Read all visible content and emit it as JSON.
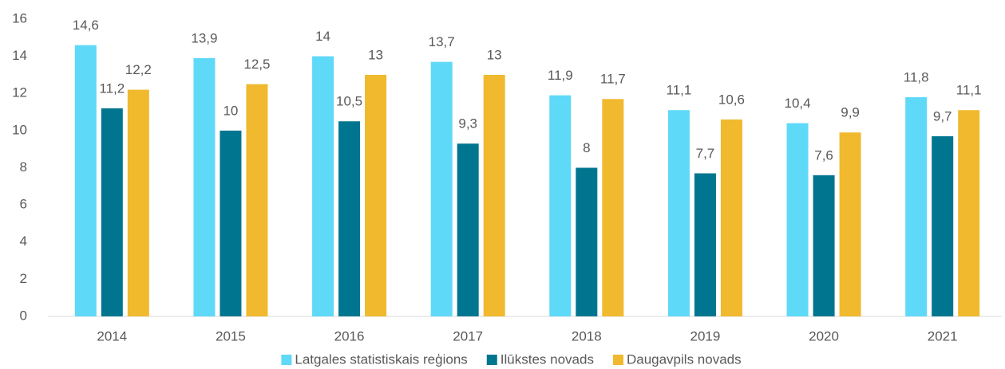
{
  "chart_data": {
    "type": "bar",
    "categories": [
      "2014",
      "2015",
      "2016",
      "2017",
      "2018",
      "2019",
      "2020",
      "2021"
    ],
    "series": [
      {
        "name": "Latgales statistiskais reģions",
        "color": "#5fd9f8",
        "values": [
          14.6,
          13.9,
          14,
          13.7,
          11.9,
          11.1,
          10.4,
          11.8
        ],
        "value_labels": [
          "14,6",
          "13,9",
          "14",
          "13,7",
          "11,9",
          "11,1",
          "10,4",
          "11,8"
        ]
      },
      {
        "name": "Ilūkstes novads",
        "color": "#00758f",
        "values": [
          11.2,
          10,
          10.5,
          9.3,
          8,
          7.7,
          7.6,
          9.7
        ],
        "value_labels": [
          "11,2",
          "10",
          "10,5",
          "9,3",
          "8",
          "7,7",
          "7,6",
          "9,7"
        ]
      },
      {
        "name": "Daugavpils novads",
        "color": "#f0b92e",
        "values": [
          12.2,
          12.5,
          13,
          13,
          11.7,
          10.6,
          9.9,
          11.1
        ],
        "value_labels": [
          "12,2",
          "12,5",
          "13",
          "13",
          "11,7",
          "10,6",
          "9,9",
          "11,1"
        ]
      }
    ],
    "ylim": [
      0,
      16
    ],
    "yticks": [
      0,
      2,
      4,
      6,
      8,
      10,
      12,
      14,
      16
    ],
    "grid": false,
    "legend": "bottom"
  }
}
